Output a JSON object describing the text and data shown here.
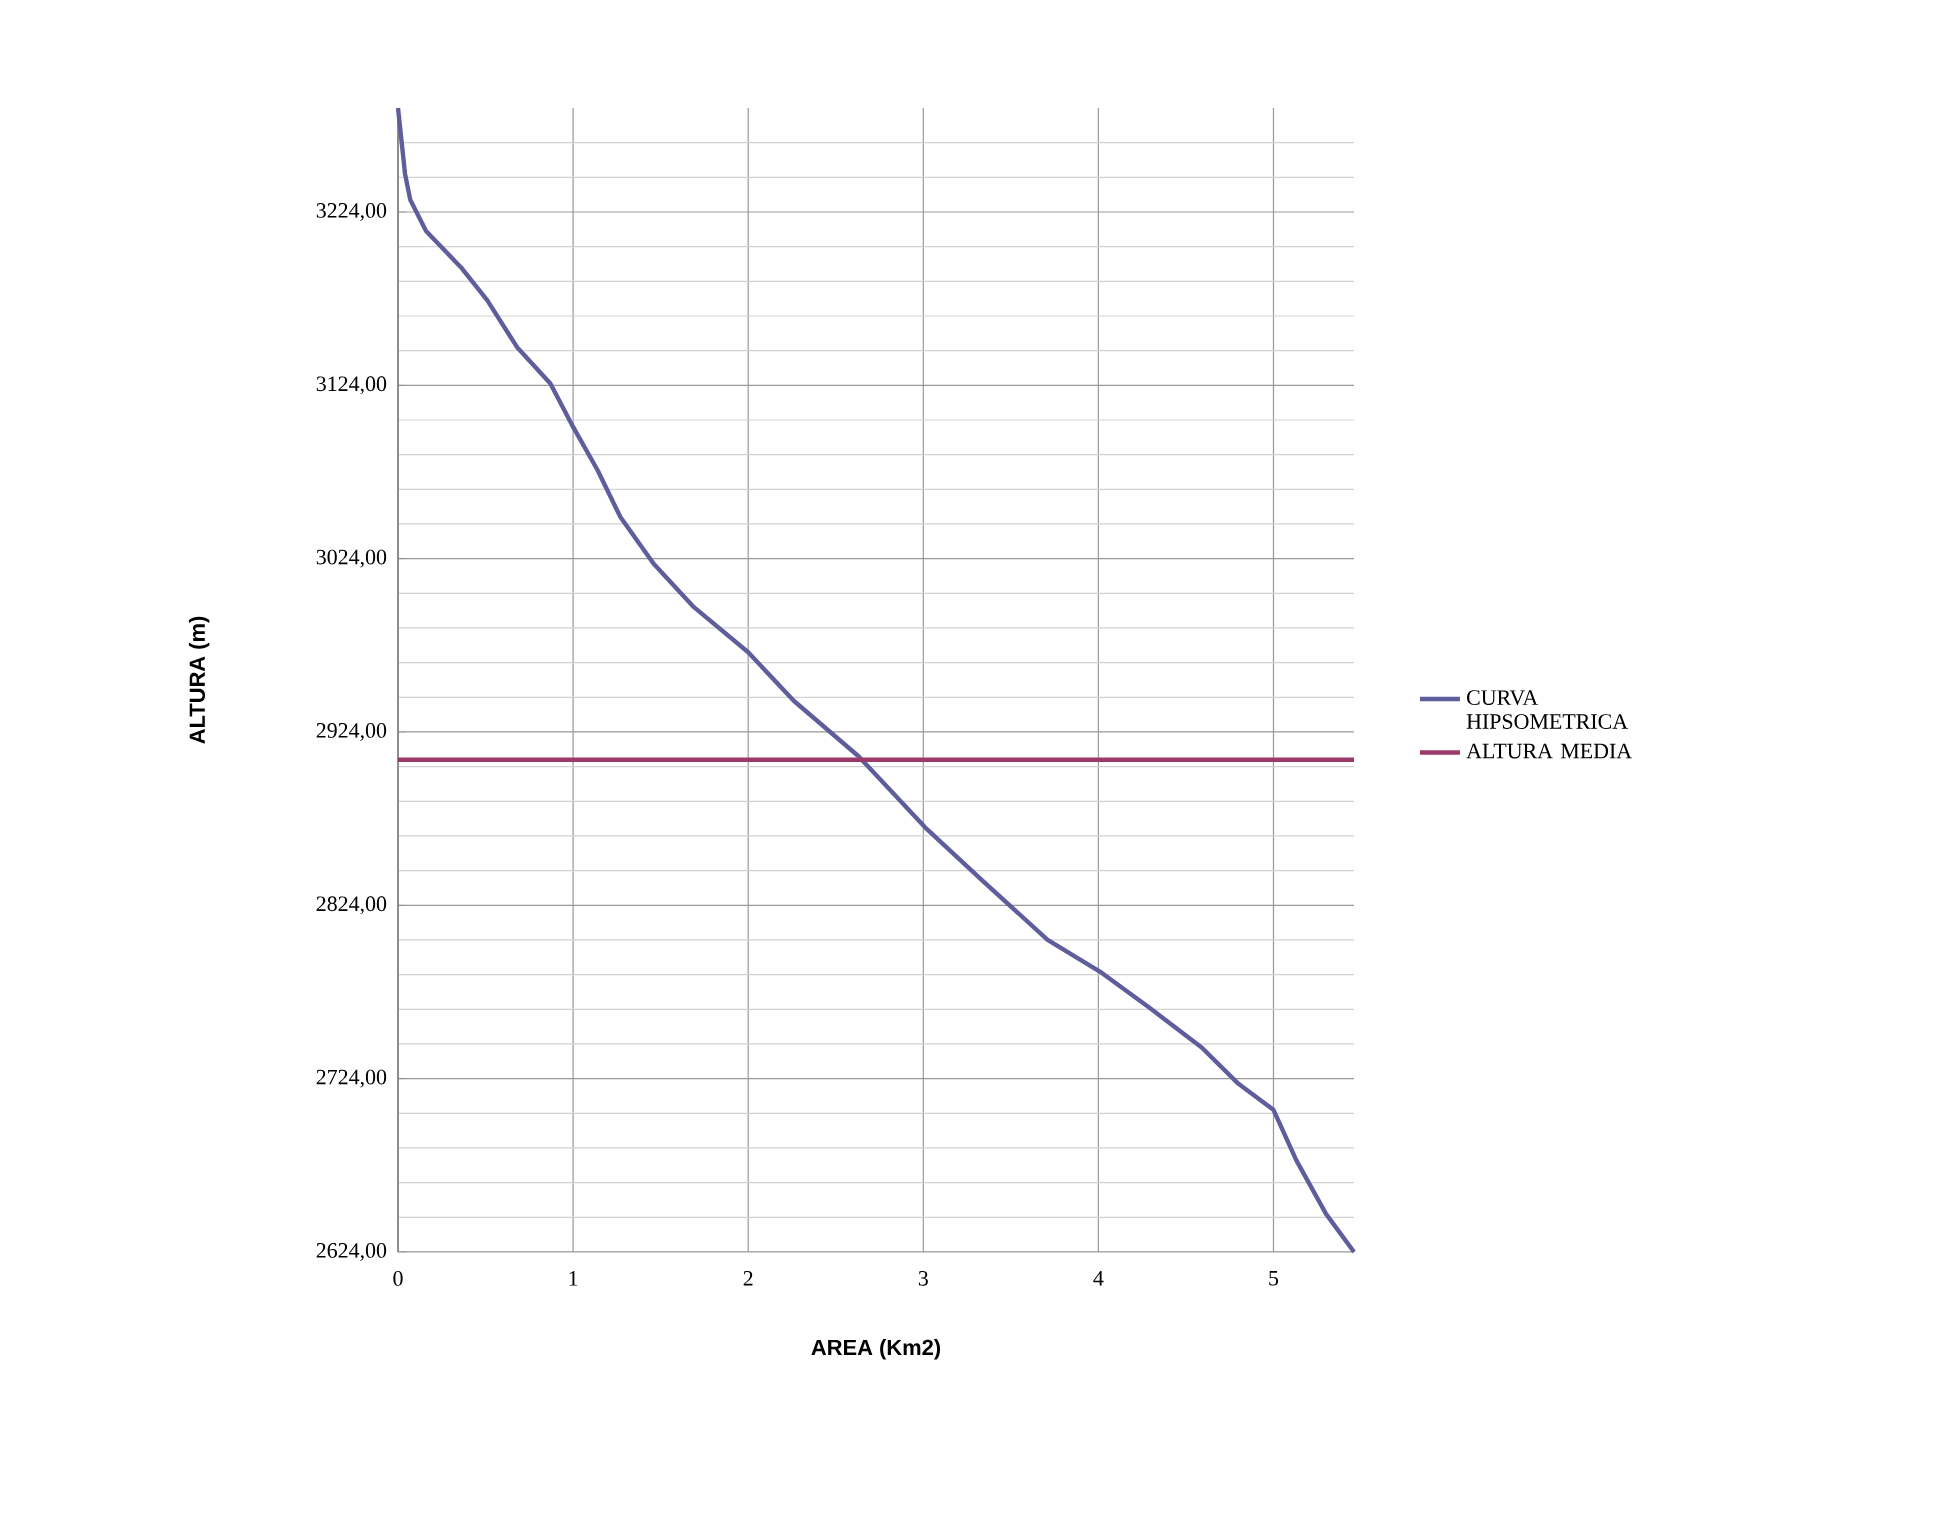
{
  "chart_data": {
    "type": "line",
    "xlabel": "AREA (Km2)",
    "ylabel": "ALTURA (m)",
    "xlim": [
      0,
      5.46
    ],
    "xticks": [
      0,
      1,
      2,
      3,
      4,
      5
    ],
    "ylim": [
      2624,
      3284
    ],
    "yticks": [
      {
        "value": 2624,
        "label": "2624,00"
      },
      {
        "value": 2644,
        "label": null
      },
      {
        "value": 2664,
        "label": null
      },
      {
        "value": 2684,
        "label": null
      },
      {
        "value": 2704,
        "label": null
      },
      {
        "value": 2724,
        "label": "2724,00"
      },
      {
        "value": 2744,
        "label": null
      },
      {
        "value": 2764,
        "label": null
      },
      {
        "value": 2784,
        "label": null
      },
      {
        "value": 2804,
        "label": null
      },
      {
        "value": 2824,
        "label": "2824,00"
      },
      {
        "value": 2844,
        "label": null
      },
      {
        "value": 2864,
        "label": null
      },
      {
        "value": 2884,
        "label": null
      },
      {
        "value": 2904,
        "label": null
      },
      {
        "value": 2924,
        "label": "2924,00"
      },
      {
        "value": 2944,
        "label": null
      },
      {
        "value": 2964,
        "label": null
      },
      {
        "value": 2984,
        "label": null
      },
      {
        "value": 3004,
        "label": null
      },
      {
        "value": 3024,
        "label": "3024,00"
      },
      {
        "value": 3044,
        "label": null
      },
      {
        "value": 3064,
        "label": null
      },
      {
        "value": 3084,
        "label": null
      },
      {
        "value": 3104,
        "label": null
      },
      {
        "value": 3124,
        "label": "3124,00"
      },
      {
        "value": 3144,
        "label": null
      },
      {
        "value": 3164,
        "label": null
      },
      {
        "value": 3184,
        "label": null
      },
      {
        "value": 3204,
        "label": null
      },
      {
        "value": 3224,
        "label": "3224,00"
      },
      {
        "value": 3244,
        "label": null
      },
      {
        "value": 3264,
        "label": null
      }
    ],
    "grid": true,
    "legend": "right",
    "series": [
      {
        "name": "CURVA HIPSOMETRICA",
        "color": "#5e5e9c",
        "x": [
          0.0,
          0.04,
          0.07,
          0.16,
          0.36,
          0.51,
          0.68,
          0.87,
          1.0,
          1.14,
          1.27,
          1.46,
          1.69,
          2.0,
          2.26,
          2.63,
          3.01,
          3.33,
          3.71,
          4.02,
          4.29,
          4.59,
          4.8,
          5.0,
          5.13,
          5.3,
          5.46
        ],
        "values": [
          3284,
          3246,
          3231,
          3213,
          3192,
          3173,
          3146,
          3125,
          3100,
          3075,
          3048,
          3021,
          2996,
          2970,
          2942,
          2910,
          2869,
          2839,
          2804,
          2785,
          2765,
          2742,
          2721,
          2706,
          2677,
          2646,
          2624
        ]
      },
      {
        "name": "ALTURA MEDIA",
        "color": "#9b3a68",
        "x": [
          0,
          5.46
        ],
        "values": [
          2908,
          2908
        ]
      }
    ]
  }
}
